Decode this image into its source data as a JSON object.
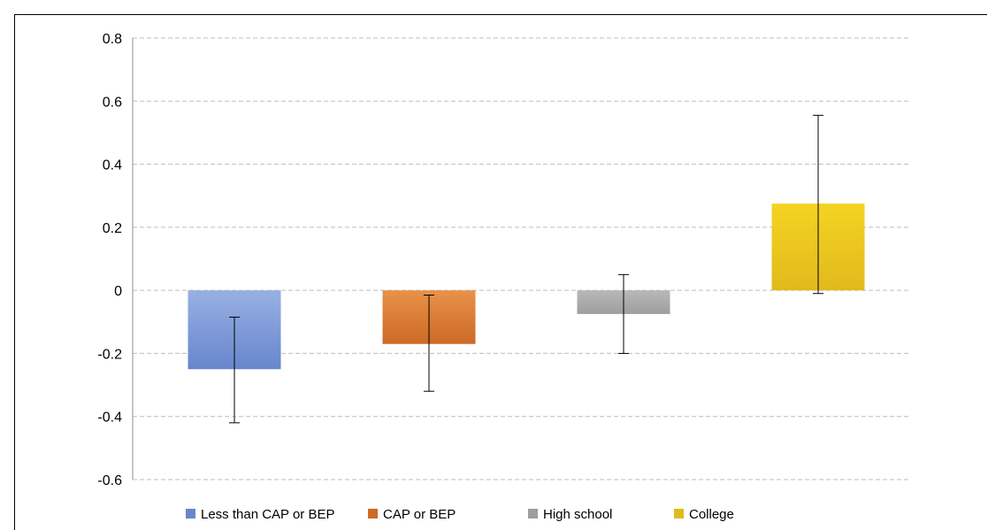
{
  "chart_data": {
    "type": "bar",
    "title": "",
    "xlabel": "",
    "ylabel": "",
    "ylim": [
      -0.6,
      0.8
    ],
    "yticks": [
      0.8,
      0.6,
      0.4,
      0.2,
      0,
      -0.2,
      -0.4,
      -0.6
    ],
    "ytick_labels": [
      "0.8",
      "0.6",
      "0.4",
      "0.2",
      "0",
      "-0.2",
      "-0.4",
      "-0.6"
    ],
    "grid": "horizontal dashed",
    "legend_position": "bottom",
    "categories": [
      "Less than CAP or BEP",
      "CAP or BEP",
      "High school",
      "College"
    ],
    "series": [
      {
        "values": [
          -0.25,
          -0.17,
          -0.075,
          0.275
        ],
        "error_low": [
          -0.42,
          -0.32,
          -0.2,
          -0.01
        ],
        "error_high": [
          -0.085,
          -0.015,
          0.05,
          0.555
        ]
      }
    ],
    "colors": {
      "Less than CAP or BEP": [
        "#98B0E4",
        "#6786CC"
      ],
      "CAP or BEP": [
        "#E8924A",
        "#CC6A24"
      ],
      "High school": [
        "#B8B8B8",
        "#9E9E9E"
      ],
      "College": [
        "#F5D322",
        "#E0BA1C"
      ]
    }
  }
}
